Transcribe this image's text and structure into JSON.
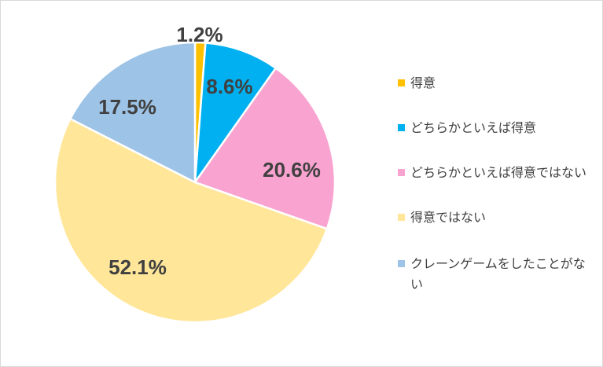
{
  "chart_data": {
    "type": "pie",
    "categories": [
      "得意",
      "どちらかといえば得意",
      "どちらかといえば得意ではない",
      "得意ではない",
      "クレーンゲームをしたことがない"
    ],
    "values": [
      1.2,
      8.6,
      20.6,
      52.1,
      17.5
    ],
    "data_labels": [
      "1.2%",
      "8.6%",
      "20.6%",
      "52.1%",
      "17.5%"
    ],
    "colors": [
      "#ffc000",
      "#00b0f0",
      "#f9a3d0",
      "#ffe699",
      "#9dc3e6"
    ],
    "start_angle_deg": 0,
    "direction": "clockwise",
    "legend_position": "right"
  }
}
